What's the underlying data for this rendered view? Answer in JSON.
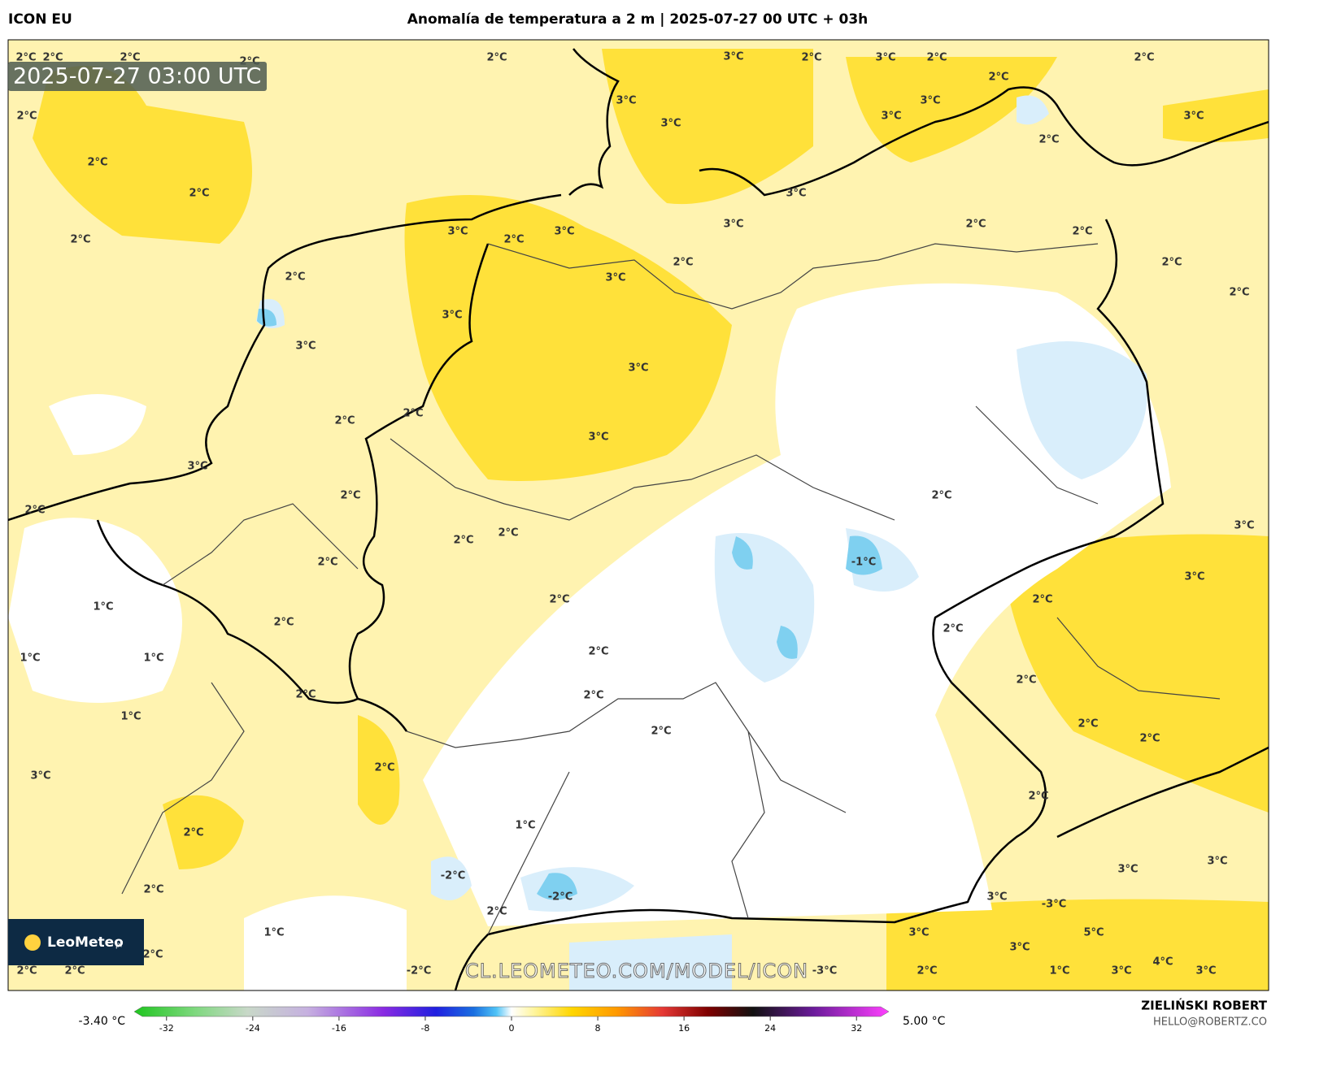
{
  "header": {
    "model": "ICON EU",
    "title": "Anomalía de temperatura a 2 m | 2025-07-27 00 UTC + 03h"
  },
  "map": {
    "valid_time": "2025-07-27 03:00 UTC",
    "watermark": "CL.LEOMETEO.COM/MODEL/ICON",
    "logo": "LeoMeteo",
    "logo_suffix": "pl",
    "labels": [
      "2°C",
      "2°C",
      "2°C",
      "2°C",
      "2°C",
      "2°C",
      "2°C",
      "2°C",
      "2°C",
      "3°C",
      "2°C",
      "3°C",
      "2°C",
      "2°C",
      "2°C",
      "3°C",
      "3°C",
      "3°C",
      "3°C",
      "3°C",
      "2°C",
      "3°C",
      "3°C",
      "2°C",
      "2°C",
      "3°C",
      "2°C",
      "3°C",
      "2°C",
      "2°C",
      "2°C",
      "3°C",
      "2°C",
      "3°C",
      "3°C",
      "3°C",
      "2°C",
      "2°C",
      "3°C",
      "3°C",
      "2°C",
      "2°C",
      "2°C",
      "3°C",
      "2°C",
      "2°C",
      "-1°C",
      "2°C",
      "3°C",
      "2°C",
      "2°C",
      "1°C",
      "2°C",
      "2°C",
      "1°C",
      "1°C",
      "2°C",
      "2°C",
      "2°C",
      "2°C",
      "1°C",
      "2°C",
      "2°C",
      "2°C",
      "3°C",
      "2°C",
      "2°C",
      "2°C",
      "1°C",
      "3°C",
      "3°C",
      "-2°C",
      "-2°C",
      "3°C",
      "-3°C",
      "2°C",
      "2°C",
      "3°C",
      "5°C",
      "1°C",
      "3°C",
      "4°C",
      "2°C",
      "2°C",
      "2°C",
      "-2°C",
      "-3°C",
      "2°C",
      "1°C",
      "3°C",
      "3°C"
    ]
  },
  "colorbar": {
    "min_label": "-3.40 °C",
    "max_label": "5.00 °C",
    "lim": [
      -35,
      35
    ],
    "ticks": [
      -32,
      -24,
      -16,
      -8,
      0,
      8,
      16,
      24,
      32
    ]
  },
  "footer": {
    "author": "ZIELIŃSKI ROBERT",
    "contact": "HELLO@ROBERTZ.CO"
  }
}
